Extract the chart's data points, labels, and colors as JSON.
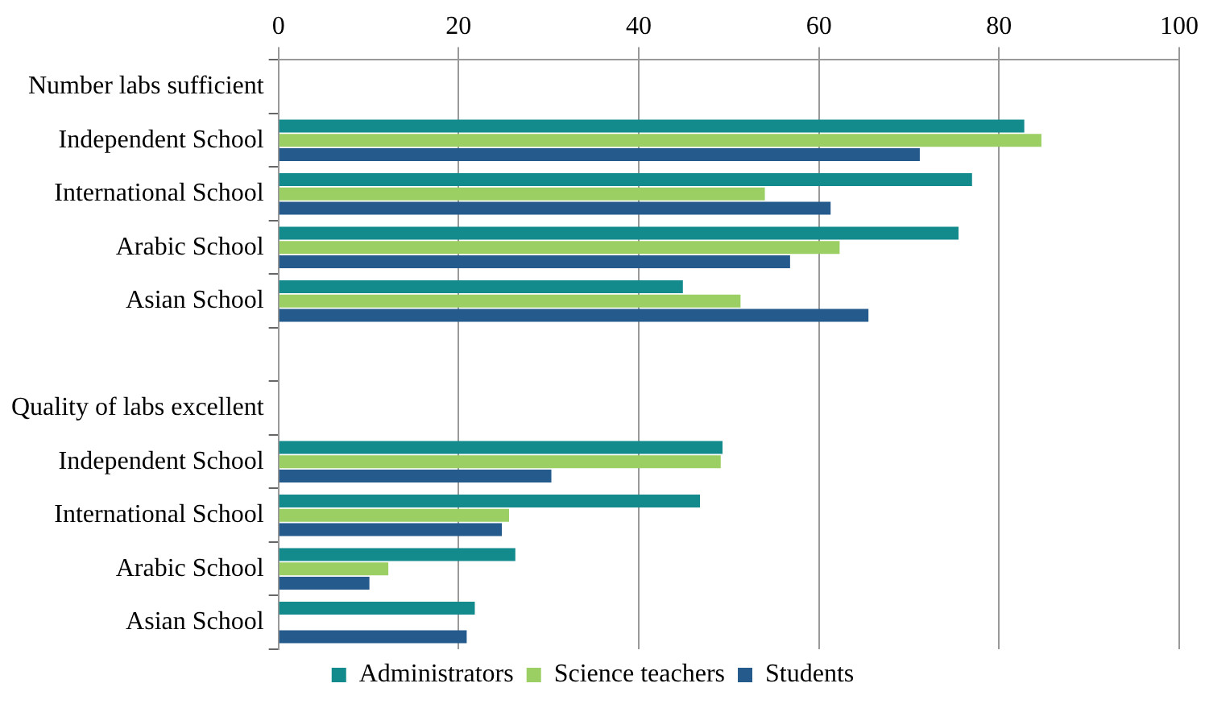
{
  "chart_data": {
    "type": "bar",
    "orientation": "horizontal",
    "categories": [
      "Number labs sufficient",
      "Independent School",
      "International School",
      "Arabic School",
      "Asian School",
      null,
      "Quality of labs excellent",
      "Independent School",
      "International School",
      "Arabic School",
      "Asian School"
    ],
    "series": [
      {
        "name": "Administrators",
        "color": "#138a8c",
        "values": [
          null,
          82.8,
          77.0,
          75.5,
          44.9,
          null,
          null,
          49.3,
          46.8,
          26.3,
          21.8
        ]
      },
      {
        "name": "Science teachers",
        "color": "#9bcf63",
        "values": [
          null,
          84.7,
          54.0,
          62.3,
          51.3,
          null,
          null,
          49.1,
          25.6,
          12.2,
          null
        ]
      },
      {
        "name": "Students",
        "color": "#255a8c",
        "values": [
          null,
          71.2,
          61.3,
          56.8,
          65.5,
          null,
          null,
          30.3,
          24.8,
          10.1,
          20.9
        ]
      }
    ],
    "xlim": [
      0,
      100
    ],
    "xticks": [
      0,
      20,
      40,
      60,
      80,
      100
    ],
    "grid": "x",
    "legend": "bottom"
  }
}
